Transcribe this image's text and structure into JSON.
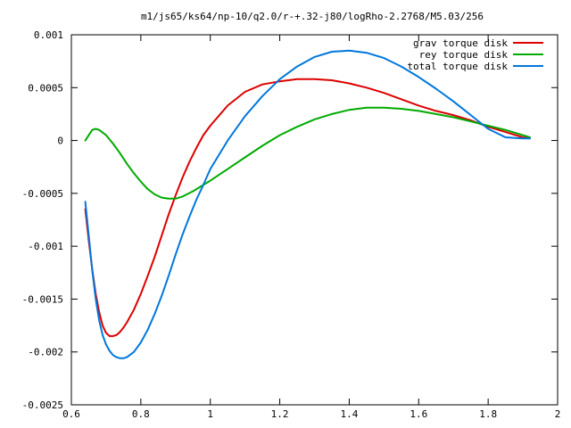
{
  "chart_data": {
    "type": "line",
    "title": "m1/js65/ks64/np-10/q2.0/r-+.32-j80/logRho-2.2768/M5.03/256",
    "xlabel": "",
    "ylabel": "",
    "xlim": [
      0.6,
      2.0
    ],
    "ylim": [
      -0.0025,
      0.001
    ],
    "xticks": [
      0.6,
      0.8,
      1.0,
      1.2,
      1.4,
      1.6,
      1.8,
      2.0
    ],
    "xtick_labels": [
      "0.6",
      "0.8",
      "1",
      "1.2",
      "1.4",
      "1.6",
      "1.8",
      "2"
    ],
    "yticks": [
      -0.0025,
      -0.002,
      -0.0015,
      -0.001,
      -0.0005,
      0,
      0.0005,
      0.001
    ],
    "ytick_labels": [
      "-0.0025",
      "-0.002",
      "-0.0015",
      "-0.001",
      "-0.0005",
      "0",
      "0.0005",
      "0.001"
    ],
    "grid": false,
    "legend_position": "top-right",
    "series": [
      {
        "name": "grav torque disk",
        "color": "#dd0000",
        "x": [
          0.64,
          0.65,
          0.66,
          0.67,
          0.68,
          0.69,
          0.7,
          0.71,
          0.72,
          0.73,
          0.74,
          0.75,
          0.76,
          0.78,
          0.8,
          0.82,
          0.84,
          0.86,
          0.88,
          0.9,
          0.92,
          0.94,
          0.96,
          0.98,
          1.0,
          1.05,
          1.1,
          1.15,
          1.2,
          1.25,
          1.3,
          1.35,
          1.4,
          1.45,
          1.5,
          1.55,
          1.6,
          1.65,
          1.7,
          1.75,
          1.8,
          1.85,
          1.9,
          1.92
        ],
        "y": [
          -0.00065,
          -0.00095,
          -0.00122,
          -0.00145,
          -0.00162,
          -0.00175,
          -0.00182,
          -0.00185,
          -0.00185,
          -0.00184,
          -0.00181,
          -0.00177,
          -0.00172,
          -0.0016,
          -0.00145,
          -0.00128,
          -0.0011,
          -0.0009,
          -0.0007,
          -0.00052,
          -0.00035,
          -0.0002,
          -7e-05,
          5e-05,
          0.00014,
          0.00033,
          0.00046,
          0.00053,
          0.00056,
          0.00058,
          0.00058,
          0.00057,
          0.00054,
          0.0005,
          0.00045,
          0.00039,
          0.00033,
          0.00028,
          0.00024,
          0.00019,
          0.00013,
          8e-05,
          3e-05,
          2e-05
        ]
      },
      {
        "name": "rey torque disk",
        "color": "#00aa00",
        "x": [
          0.64,
          0.65,
          0.66,
          0.67,
          0.68,
          0.7,
          0.72,
          0.74,
          0.76,
          0.78,
          0.8,
          0.82,
          0.84,
          0.86,
          0.88,
          0.9,
          0.92,
          0.95,
          1.0,
          1.05,
          1.1,
          1.15,
          1.2,
          1.25,
          1.3,
          1.35,
          1.4,
          1.45,
          1.5,
          1.55,
          1.6,
          1.65,
          1.7,
          1.75,
          1.8,
          1.85,
          1.9,
          1.92
        ],
        "y": [
          0.0,
          5e-05,
          0.0001,
          0.00011,
          0.0001,
          5e-05,
          -3e-05,
          -0.00012,
          -0.00022,
          -0.00031,
          -0.00039,
          -0.00046,
          -0.00051,
          -0.00054,
          -0.00055,
          -0.00055,
          -0.00053,
          -0.00048,
          -0.00038,
          -0.00027,
          -0.00016,
          -5e-05,
          5e-05,
          0.00013,
          0.0002,
          0.00025,
          0.00029,
          0.00031,
          0.00031,
          0.0003,
          0.00028,
          0.00025,
          0.00022,
          0.00018,
          0.00014,
          0.0001,
          5e-05,
          3e-05
        ]
      },
      {
        "name": "total torque disk",
        "color": "#0077dd",
        "x": [
          0.64,
          0.65,
          0.66,
          0.67,
          0.68,
          0.69,
          0.7,
          0.71,
          0.72,
          0.73,
          0.74,
          0.75,
          0.76,
          0.78,
          0.8,
          0.82,
          0.84,
          0.86,
          0.88,
          0.9,
          0.92,
          0.94,
          0.96,
          0.98,
          1.0,
          1.05,
          1.1,
          1.15,
          1.2,
          1.25,
          1.3,
          1.35,
          1.4,
          1.45,
          1.5,
          1.55,
          1.6,
          1.65,
          1.7,
          1.75,
          1.8,
          1.85,
          1.9,
          1.92
        ],
        "y": [
          -0.00058,
          -0.0009,
          -0.00123,
          -0.0015,
          -0.0017,
          -0.00184,
          -0.00193,
          -0.00199,
          -0.00203,
          -0.00205,
          -0.00206,
          -0.00206,
          -0.00205,
          -0.002,
          -0.00191,
          -0.00179,
          -0.00164,
          -0.00147,
          -0.00128,
          -0.00108,
          -0.00089,
          -0.00072,
          -0.00056,
          -0.00042,
          -0.00027,
          0.0,
          0.00023,
          0.00042,
          0.00058,
          0.0007,
          0.00079,
          0.00084,
          0.00085,
          0.00083,
          0.00078,
          0.0007,
          0.0006,
          0.00049,
          0.00037,
          0.00024,
          0.00011,
          3e-05,
          2e-05,
          2e-05
        ]
      }
    ]
  }
}
